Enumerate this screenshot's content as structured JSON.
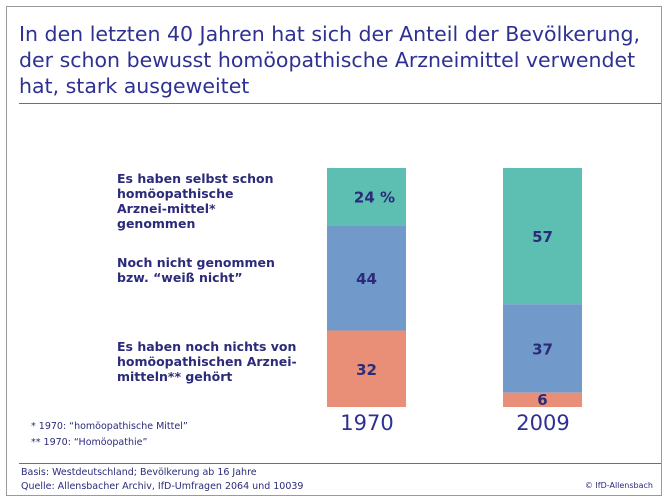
{
  "title": "In den letzten 40 Jahren hat sich der Anteil der Bevölkerung, der schon bewusst homöopathische Arzneimittel verwendet hat, stark ausgeweitet",
  "chart_data": {
    "type": "bar",
    "stacked": true,
    "categories": [
      "1970",
      "2009"
    ],
    "series": [
      {
        "name": "Es haben selbst schon homöopathische Arznei-mittel* genommen",
        "values": [
          24,
          57
        ],
        "labels": [
          "24 %",
          "57"
        ],
        "color": "#5cbfb1"
      },
      {
        "name": "Noch nicht genommen bzw. “weiß nicht”",
        "values": [
          44,
          37
        ],
        "labels": [
          "44",
          "37"
        ],
        "color": "#7199c9"
      },
      {
        "name": "Es haben noch nichts von homöopathischen Arznei-mitteln** gehört",
        "values": [
          32,
          6
        ],
        "labels": [
          "32",
          "6"
        ],
        "color": "#e98f78"
      }
    ],
    "ylim": [
      0,
      100
    ],
    "legend": "left"
  },
  "notes": [
    "* 1970: “homöopathische Mittel”",
    "** 1970: “Homöopathie”"
  ],
  "footer": {
    "basis": "Basis: Westdeutschland; Bevölkerung ab 16 Jahre",
    "source": "Quelle: Allensbacher Archiv, IfD-Umfragen 2064 und 10039",
    "copyright": "© IfD-Allensbach"
  }
}
